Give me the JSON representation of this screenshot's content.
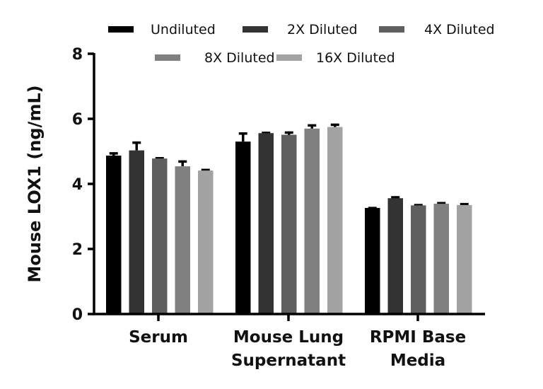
{
  "chart_data": {
    "type": "bar",
    "title": "",
    "xlabel": "",
    "ylabel": "Mouse LOX1 (ng/mL)",
    "ylim": [
      0,
      8
    ],
    "yticks": [
      0,
      2,
      4,
      6,
      8
    ],
    "grid": false,
    "legend_position": "top",
    "categories": [
      [
        "Serum"
      ],
      [
        "Mouse Lung",
        "Supernatant"
      ],
      [
        "RPMI Base",
        "Media"
      ]
    ],
    "category_names": [
      "Serum",
      "Mouse Lung Supernatant",
      "RPMI Base Media"
    ],
    "series": [
      {
        "name": "Undiluted",
        "color": "#000000",
        "values": [
          4.87,
          5.3,
          3.26
        ],
        "errors": [
          0.1,
          0.28,
          0.03
        ]
      },
      {
        "name": "2X Diluted",
        "color": "#333333",
        "values": [
          5.03,
          5.56,
          3.56
        ],
        "errors": [
          0.27,
          0.04,
          0.06
        ]
      },
      {
        "name": "4X Diluted",
        "color": "#5f5f5f",
        "values": [
          4.78,
          5.51,
          3.34
        ],
        "errors": [
          0.04,
          0.1,
          0.04
        ]
      },
      {
        "name": "8X Diluted",
        "color": "#808080",
        "values": [
          4.54,
          5.7,
          3.39
        ],
        "errors": [
          0.18,
          0.13,
          0.05
        ]
      },
      {
        "name": "16X Diluted",
        "color": "#a3a3a3",
        "values": [
          4.41,
          5.75,
          3.35
        ],
        "errors": [
          0.05,
          0.1,
          0.06
        ]
      }
    ]
  }
}
